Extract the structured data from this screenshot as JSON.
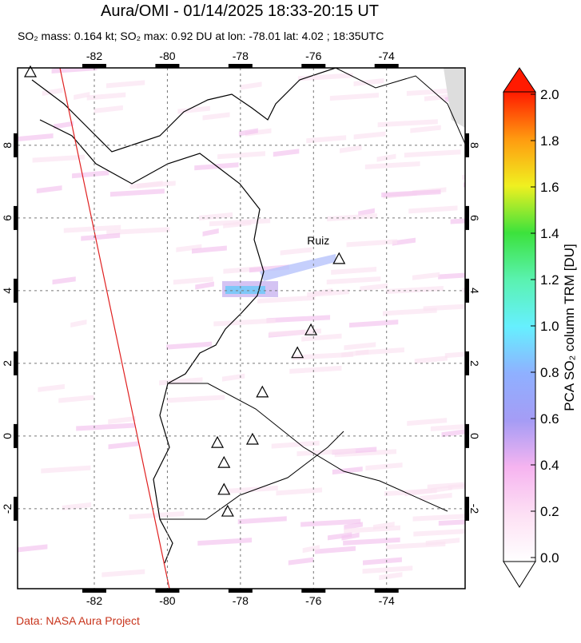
{
  "header": {
    "title": "Aura/OMI - 01/14/2025 18:33-20:15 UT",
    "subtitle": "SO₂ mass: 0.164 kt; SO₂ max: 0.92 DU at lon: -78.01 lat: 4.02 ; 18:35UTC"
  },
  "map": {
    "lon_range": [
      -84.1,
      -71.85
    ],
    "lat_range": [
      -4.2,
      10.13
    ],
    "lon_ticks": [
      -82,
      -80,
      -78,
      -76,
      -74
    ],
    "lat_ticks": [
      8,
      6,
      4,
      2,
      0,
      -2
    ],
    "volcanoes": [
      {
        "name": "Ruiz",
        "lon": -75.3,
        "lat": 4.88
      },
      {
        "lon": -83.75,
        "lat": 10.02
      },
      {
        "lon": -76.07,
        "lat": 2.92
      },
      {
        "lon": -76.44,
        "lat": 2.29
      },
      {
        "lon": -77.4,
        "lat": 1.21
      },
      {
        "lon": -78.63,
        "lat": -0.18
      },
      {
        "lon": -77.67,
        "lat": -0.09
      },
      {
        "lon": -78.45,
        "lat": -0.73
      },
      {
        "lon": -78.45,
        "lat": -1.47
      },
      {
        "lon": -78.35,
        "lat": -2.07
      }
    ]
  },
  "colorbar": {
    "label": "PCA SO₂ column TRM [DU]",
    "range": [
      0,
      2
    ],
    "ticks": [
      {
        "value": 0,
        "label": "0.0"
      },
      0.2,
      0.4,
      0.6,
      0.8,
      {
        "value": 1,
        "label": "1.0"
      },
      1.2,
      1.4,
      1.6,
      1.8,
      {
        "value": 2,
        "label": "2.0"
      }
    ]
  },
  "footer": {
    "credit": "Data: NASA Aura Project"
  }
}
